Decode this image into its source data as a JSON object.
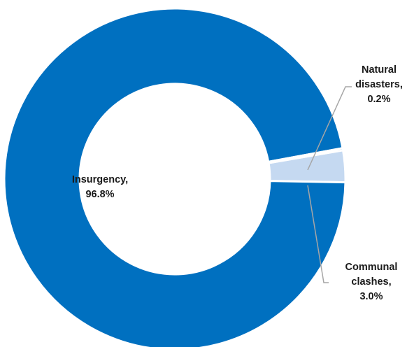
{
  "chart_data": {
    "type": "pie",
    "title": "",
    "categories": [
      "Insurgency",
      "Communal clashes",
      "Natural disasters"
    ],
    "values": [
      96.8,
      3.0,
      0.2
    ],
    "colors": [
      "#0070c0",
      "#c5d9f1",
      "#0070c0"
    ],
    "labels": {
      "insurgency": {
        "line1": "Insurgency,",
        "line2": "96.8%"
      },
      "natural": {
        "line1": "Natural",
        "line2": "disasters,",
        "line3": "0.2%"
      },
      "communal": {
        "line1": "Communal",
        "line2": "clashes,",
        "line3": "3.0%"
      }
    },
    "donut": true,
    "legend": "none"
  }
}
